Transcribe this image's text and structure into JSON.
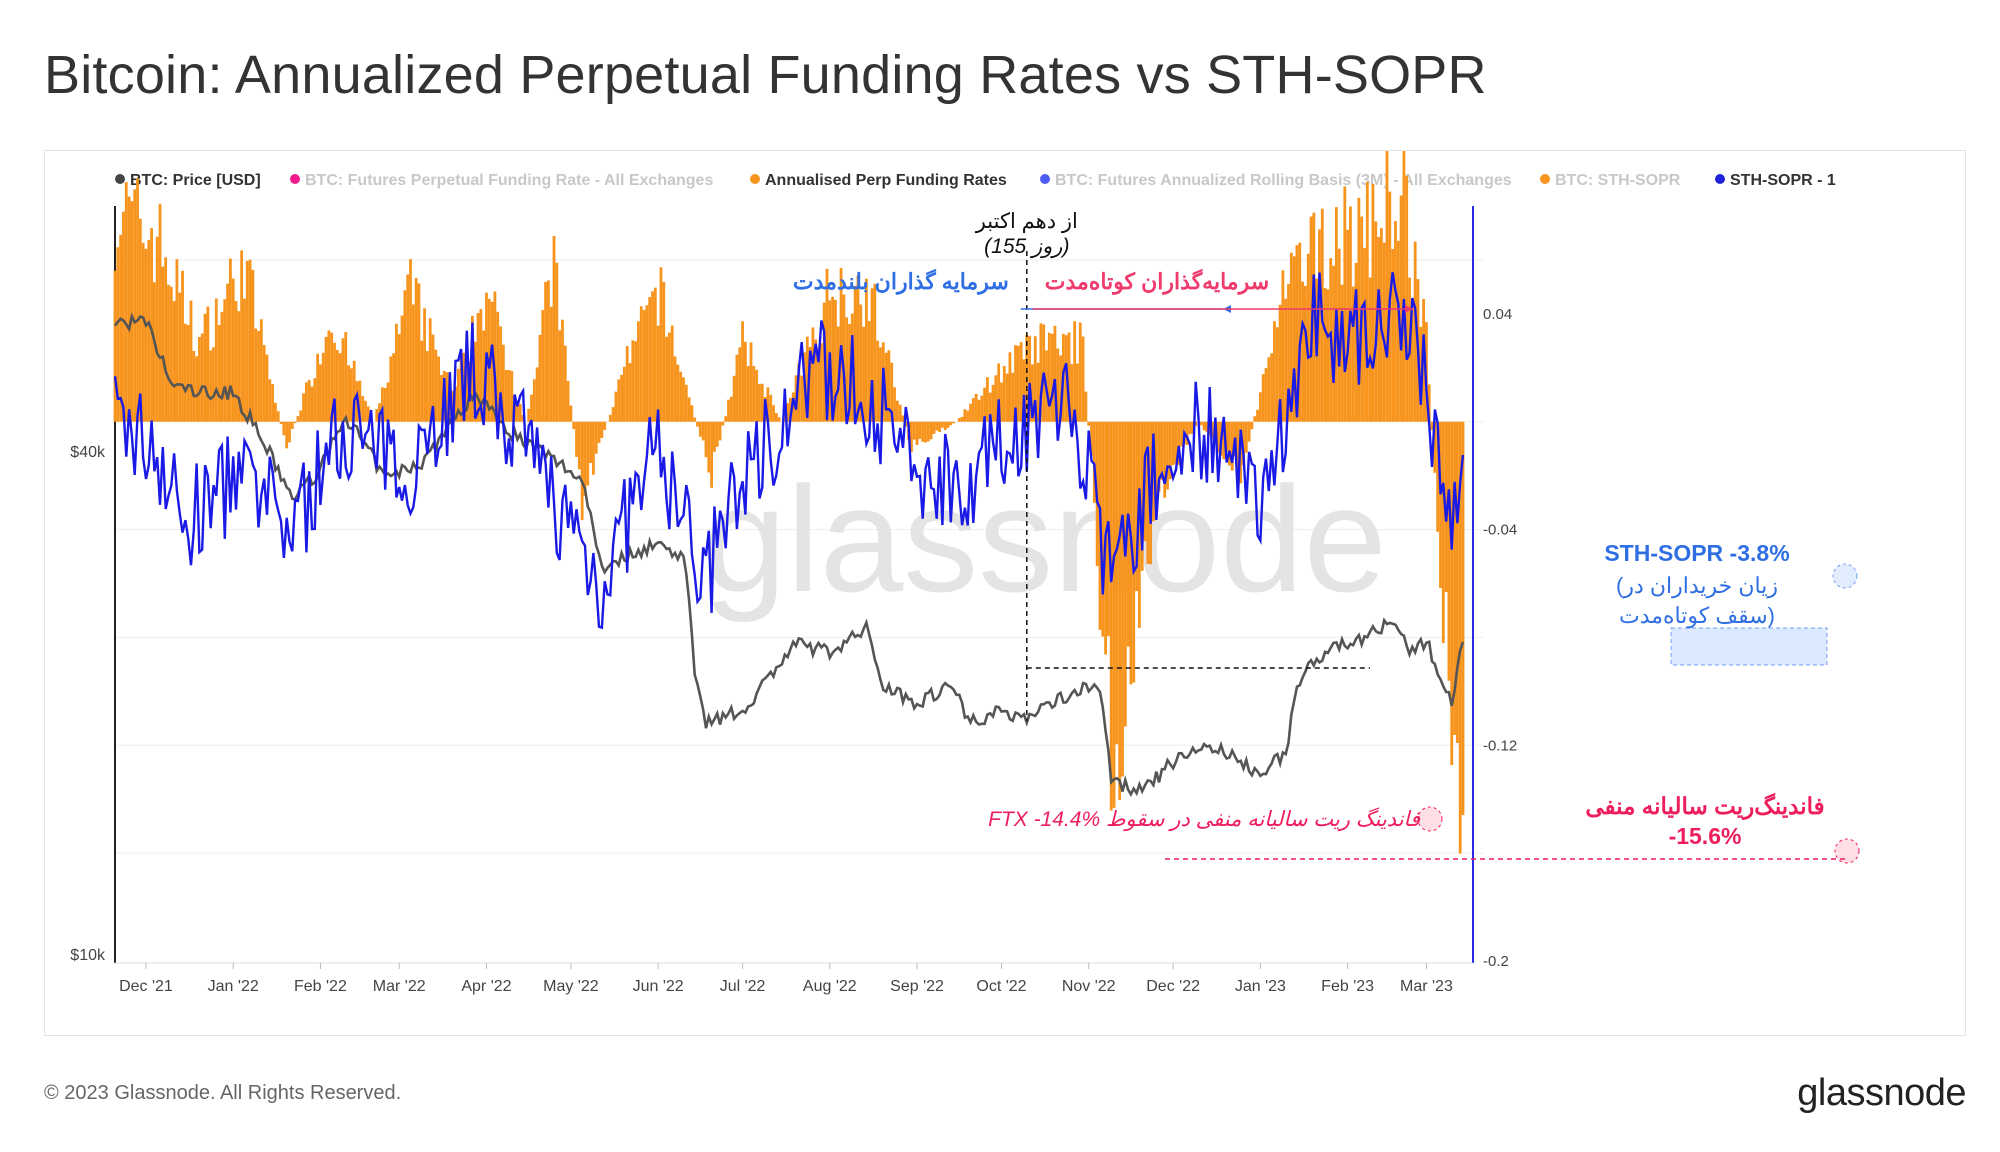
{
  "title": "Bitcoin: Annualized Perpetual Funding Rates vs STH-SOPR",
  "footer": {
    "copyright": "© 2023 Glassnode. All Rights Reserved.",
    "brand": "glassnode"
  },
  "watermark": "glassnode",
  "legend": [
    {
      "label": "BTC: Price [USD]",
      "color": "#444444",
      "active": true
    },
    {
      "label": "BTC: Futures Perpetual Funding Rate - All Exchanges",
      "color": "#ee1d8b",
      "active": false
    },
    {
      "label": "Annualised Perp Funding Rates",
      "color": "#f7941d",
      "active": true
    },
    {
      "label": "BTC: Futures Annualized Rolling Basis (3M) - All Exchanges",
      "color": "#4e5cf5",
      "active": false
    },
    {
      "label": "BTC: STH-SOPR",
      "color": "#f7941d",
      "active": false
    },
    {
      "label": "STH-SOPR - 1",
      "color": "#2222dd",
      "active": true
    }
  ],
  "colors": {
    "funding": "#f7941d",
    "sopr": "#1a1ae6",
    "price": "#555555",
    "annotation_blue": "#2f6fe3",
    "annotation_red": "#ee3b6c",
    "annotation_pink": "#ee1d5c"
  },
  "annotations": {
    "from_oct10_line1": "از دهم اکتبر",
    "from_oct10_line2": "(155 روز)",
    "long_term": "سرمایه گذاران بلندمدت",
    "short_term": "سرمایه‌گذاران کوتاه‌مدت",
    "sth_sopr_value": "STH-SOPR -3.8%",
    "sth_loss_line1": "(زیان خریداران  در",
    "sth_loss_line2": "سقف کوتاه‌مدت)",
    "ftx_note": "FTX -14.4% فاندینگ ریت سالیانه منفی در سقوط",
    "neg_funding_line1": "فاندینگ‌ریت سالیانه منفی",
    "neg_funding_line2": "-15.6%"
  },
  "chart_data": {
    "type": "line",
    "x_axis": {
      "ticks": [
        "Dec '21",
        "Jan '22",
        "Feb '22",
        "Mar '22",
        "Apr '22",
        "May '22",
        "Jun '22",
        "Jul '22",
        "Aug '22",
        "Sep '22",
        "Oct '22",
        "Nov '22",
        "Dec '22",
        "Jan '23",
        "Feb '23",
        "Mar '23"
      ],
      "range": [
        "2021-11-20",
        "2023-03-14"
      ]
    },
    "y_left": {
      "scale": "log",
      "ticks": [
        "$10k",
        "$40k"
      ],
      "ticks_values": [
        10000,
        40000
      ]
    },
    "y_right": {
      "ticks": [
        "0.04",
        "-0.04",
        "-0.12",
        "-0.2"
      ],
      "range": [
        -0.2,
        0.08
      ]
    },
    "grid": true,
    "legend_position": "top",
    "series": [
      {
        "name": "BTC: Price [USD]",
        "axis": "left",
        "points": [
          [
            "2021-11-20",
            57000
          ],
          [
            "2021-12-01",
            57000
          ],
          [
            "2021-12-10",
            48000
          ],
          [
            "2021-12-20",
            47000
          ],
          [
            "2022-01-01",
            47000
          ],
          [
            "2022-01-10",
            42000
          ],
          [
            "2022-01-22",
            35000
          ],
          [
            "2022-02-01",
            38000
          ],
          [
            "2022-02-10",
            44000
          ],
          [
            "2022-02-24",
            37000
          ],
          [
            "2022-03-10",
            39000
          ],
          [
            "2022-03-28",
            47000
          ],
          [
            "2022-04-10",
            42000
          ],
          [
            "2022-04-25",
            39000
          ],
          [
            "2022-05-05",
            37000
          ],
          [
            "2022-05-12",
            29000
          ],
          [
            "2022-05-31",
            31000
          ],
          [
            "2022-06-10",
            30000
          ],
          [
            "2022-06-14",
            22000
          ],
          [
            "2022-06-18",
            19000
          ],
          [
            "2022-07-01",
            19500
          ],
          [
            "2022-07-20",
            23500
          ],
          [
            "2022-08-01",
            23000
          ],
          [
            "2022-08-14",
            24500
          ],
          [
            "2022-08-20",
            21000
          ],
          [
            "2022-09-01",
            20000
          ],
          [
            "2022-09-13",
            21000
          ],
          [
            "2022-09-20",
            19000
          ],
          [
            "2022-10-01",
            19500
          ],
          [
            "2022-10-10",
            19200
          ],
          [
            "2022-10-25",
            20500
          ],
          [
            "2022-11-05",
            21000
          ],
          [
            "2022-11-09",
            16000
          ],
          [
            "2022-11-21",
            15700
          ],
          [
            "2022-12-01",
            17000
          ],
          [
            "2022-12-14",
            17800
          ],
          [
            "2022-12-31",
            16500
          ],
          [
            "2023-01-10",
            17300
          ],
          [
            "2023-01-14",
            20900
          ],
          [
            "2023-01-21",
            22700
          ],
          [
            "2023-02-01",
            23500
          ],
          [
            "2023-02-16",
            24800
          ],
          [
            "2023-02-24",
            23000
          ],
          [
            "2023-03-01",
            23600
          ],
          [
            "2023-03-10",
            20000
          ],
          [
            "2023-03-14",
            24000
          ]
        ]
      },
      {
        "name": "Annualised Perp Funding Rates",
        "axis": "right",
        "points": [
          [
            "2021-11-20",
            0.08
          ],
          [
            "2021-12-05",
            0.07
          ],
          [
            "2021-12-20",
            0.03
          ],
          [
            "2022-01-05",
            0.06
          ],
          [
            "2022-01-20",
            -0.01
          ],
          [
            "2022-02-05",
            0.04
          ],
          [
            "2022-02-20",
            0.0
          ],
          [
            "2022-03-05",
            0.05
          ],
          [
            "2022-03-20",
            0.01
          ],
          [
            "2022-04-01",
            0.05
          ],
          [
            "2022-04-15",
            0.0
          ],
          [
            "2022-04-25",
            0.06
          ],
          [
            "2022-05-05",
            -0.03
          ],
          [
            "2022-05-20",
            0.02
          ],
          [
            "2022-06-01",
            0.05
          ],
          [
            "2022-06-20",
            -0.02
          ],
          [
            "2022-07-01",
            0.03
          ],
          [
            "2022-07-15",
            0.0
          ],
          [
            "2022-08-01",
            0.05
          ],
          [
            "2022-08-15",
            0.05
          ],
          [
            "2022-08-30",
            -0.01
          ],
          [
            "2022-09-15",
            0.0
          ],
          [
            "2022-10-01",
            0.02
          ],
          [
            "2022-10-15",
            0.03
          ],
          [
            "2022-10-30",
            0.03
          ],
          [
            "2022-11-10",
            -0.144
          ],
          [
            "2022-11-25",
            -0.03
          ],
          [
            "2022-12-10",
            0.0
          ],
          [
            "2022-12-25",
            -0.02
          ],
          [
            "2023-01-10",
            0.05
          ],
          [
            "2023-01-25",
            0.07
          ],
          [
            "2023-02-05",
            0.07
          ],
          [
            "2023-02-20",
            0.09
          ],
          [
            "2023-03-01",
            0.03
          ],
          [
            "2023-03-12",
            -0.156
          ]
        ]
      },
      {
        "name": "STH-SOPR - 1",
        "axis": "right",
        "points": [
          [
            "2021-11-20",
            0.0
          ],
          [
            "2021-12-05",
            -0.01
          ],
          [
            "2021-12-15",
            -0.04
          ],
          [
            "2022-01-01",
            -0.02
          ],
          [
            "2022-01-22",
            -0.04
          ],
          [
            "2022-02-10",
            0.0
          ],
          [
            "2022-03-01",
            -0.02
          ],
          [
            "2022-03-28",
            0.02
          ],
          [
            "2022-04-15",
            -0.01
          ],
          [
            "2022-05-12",
            -0.06
          ],
          [
            "2022-06-01",
            -0.01
          ],
          [
            "2022-06-18",
            -0.06
          ],
          [
            "2022-07-01",
            -0.02
          ],
          [
            "2022-07-28",
            0.02
          ],
          [
            "2022-08-15",
            0.01
          ],
          [
            "2022-09-01",
            -0.02
          ],
          [
            "2022-09-20",
            -0.02
          ],
          [
            "2022-10-10",
            0.0
          ],
          [
            "2022-10-25",
            0.01
          ],
          [
            "2022-11-09",
            -0.06
          ],
          [
            "2022-11-20",
            -0.03
          ],
          [
            "2022-12-10",
            0.0
          ],
          [
            "2022-12-30",
            -0.03
          ],
          [
            "2023-01-10",
            0.0
          ],
          [
            "2023-01-20",
            0.04
          ],
          [
            "2023-02-01",
            0.03
          ],
          [
            "2023-02-16",
            0.04
          ],
          [
            "2023-02-28",
            0.02
          ],
          [
            "2023-03-10",
            -0.038
          ],
          [
            "2023-03-14",
            0.0
          ]
        ]
      }
    ]
  }
}
